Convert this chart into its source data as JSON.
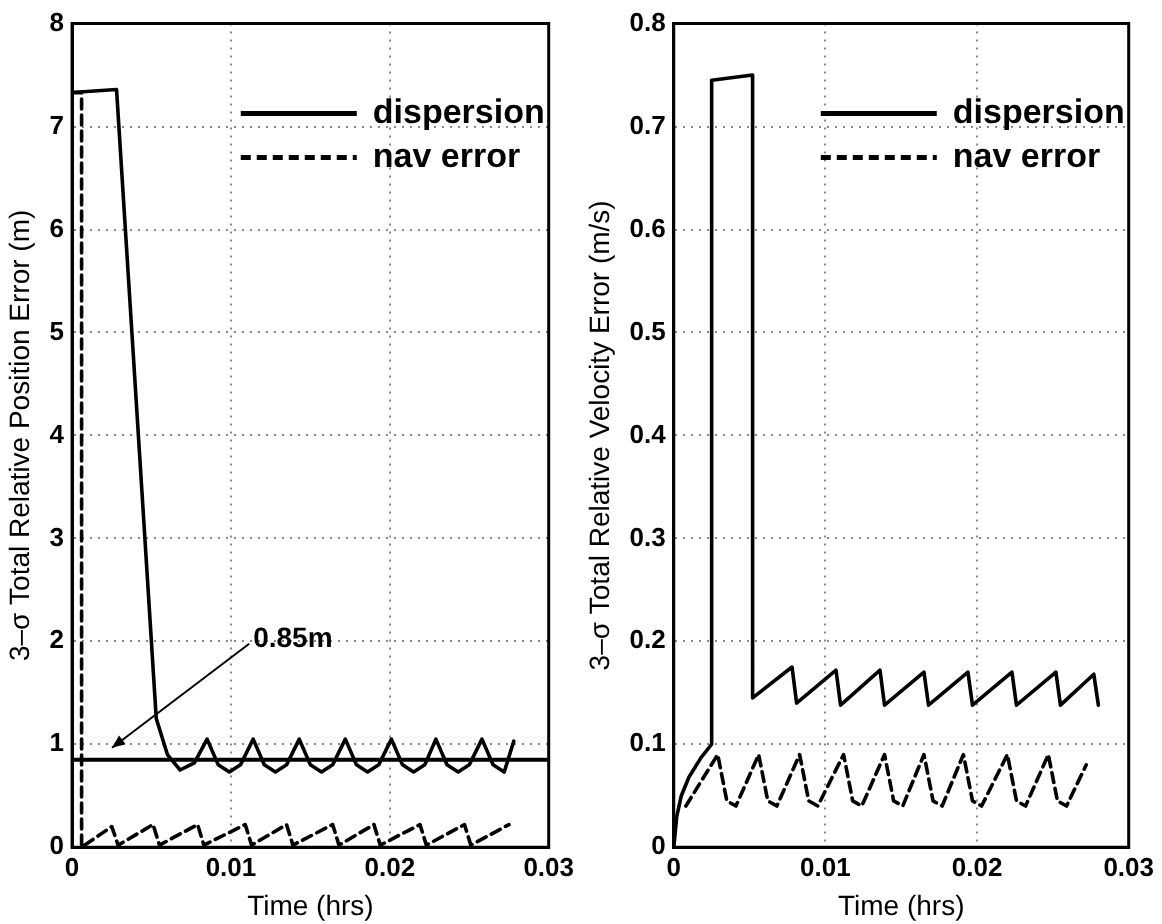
{
  "chart_data": [
    {
      "type": "line",
      "xlabel": "Time (hrs)",
      "ylabel": "3–σ Total Relative Position Error (m)",
      "xlim": [
        0,
        0.03
      ],
      "ylim": [
        0,
        8
      ],
      "xticks": [
        0,
        0.01,
        0.02,
        0.03
      ],
      "yticks": [
        0,
        1,
        2,
        3,
        4,
        5,
        6,
        7,
        8
      ],
      "grid": true,
      "legend": "top right",
      "marker": "none",
      "ref_lines": [
        {
          "axis": "y",
          "value": 0.85,
          "label": "0.85m",
          "color": "#000000"
        }
      ],
      "series": [
        {
          "name": "dispersion",
          "color": "#000000",
          "line_style": "solid",
          "x": [
            0,
            0.0028,
            0.0053,
            0.006,
            0.0068,
            0.0077,
            0.0085,
            0.0092,
            0.0099,
            0.0106,
            0.0114,
            0.0121,
            0.0128,
            0.0135,
            0.0143,
            0.015,
            0.0157,
            0.0164,
            0.0172,
            0.0179,
            0.0186,
            0.0193,
            0.0201,
            0.0208,
            0.0215,
            0.0222,
            0.0229,
            0.0236,
            0.0243,
            0.025,
            0.0258,
            0.0265,
            0.0272,
            0.0278
          ],
          "values": [
            7.33,
            7.36,
            1.25,
            0.9,
            0.75,
            0.82,
            1.05,
            0.8,
            0.73,
            0.8,
            1.05,
            0.8,
            0.73,
            0.8,
            1.05,
            0.8,
            0.73,
            0.8,
            1.05,
            0.8,
            0.73,
            0.8,
            1.05,
            0.8,
            0.73,
            0.8,
            1.05,
            0.8,
            0.73,
            0.8,
            1.05,
            0.8,
            0.73,
            1.03
          ]
        },
        {
          "name": "nav error",
          "color": "#000000",
          "line_style": "dashed",
          "x": [
            0,
            0.0006,
            0.0006,
            0.0025,
            0.0029,
            0.0051,
            0.0055,
            0.0079,
            0.0083,
            0.0109,
            0.0113,
            0.0135,
            0.0139,
            0.0164,
            0.0168,
            0.019,
            0.0194,
            0.0219,
            0.0223,
            0.0247,
            0.0251,
            0.0275
          ],
          "values": [
            7.33,
            7.33,
            0,
            0.2,
            0.02,
            0.22,
            0.02,
            0.22,
            0.02,
            0.22,
            0.02,
            0.22,
            0.02,
            0.22,
            0.02,
            0.22,
            0.02,
            0.22,
            0.02,
            0.22,
            0.02,
            0.22
          ]
        }
      ]
    },
    {
      "type": "line",
      "xlabel": "Time (hrs)",
      "ylabel": "3–σ Total Relative Velocity Error (m/s)",
      "xlim": [
        0,
        0.03
      ],
      "ylim": [
        0,
        0.8
      ],
      "xticks": [
        0,
        0.01,
        0.02,
        0.03
      ],
      "yticks": [
        0,
        0.1,
        0.2,
        0.3,
        0.4,
        0.5,
        0.6,
        0.7,
        0.8
      ],
      "grid": true,
      "legend": "top right",
      "marker": "none",
      "series": [
        {
          "name": "dispersion",
          "color": "#000000",
          "line_style": "solid",
          "x": [
            0,
            0.0002,
            0.0005,
            0.001,
            0.0018,
            0.0025,
            0.0025,
            0.0052,
            0.0052,
            0.0078,
            0.0081,
            0.0107,
            0.011,
            0.0136,
            0.0139,
            0.0165,
            0.0168,
            0.0194,
            0.0197,
            0.0223,
            0.0226,
            0.0252,
            0.0255,
            0.0277,
            0.028
          ],
          "values": [
            0,
            0.03,
            0.05,
            0.068,
            0.087,
            0.1,
            0.745,
            0.75,
            0.145,
            0.175,
            0.14,
            0.172,
            0.138,
            0.172,
            0.138,
            0.17,
            0.138,
            0.17,
            0.138,
            0.17,
            0.138,
            0.17,
            0.138,
            0.168,
            0.138
          ]
        },
        {
          "name": "nav error",
          "color": "#000000",
          "line_style": "dashed",
          "x": [
            0.0008,
            0.0029,
            0.0035,
            0.0041,
            0.0056,
            0.0062,
            0.0068,
            0.0083,
            0.0089,
            0.0095,
            0.0112,
            0.0118,
            0.0124,
            0.0139,
            0.0145,
            0.0151,
            0.0165,
            0.0171,
            0.0177,
            0.0191,
            0.0197,
            0.0203,
            0.022,
            0.0226,
            0.0232,
            0.0247,
            0.0253,
            0.0259,
            0.0272
          ],
          "values": [
            0.04,
            0.09,
            0.045,
            0.04,
            0.09,
            0.045,
            0.04,
            0.09,
            0.045,
            0.04,
            0.09,
            0.045,
            0.04,
            0.09,
            0.045,
            0.04,
            0.09,
            0.045,
            0.04,
            0.09,
            0.045,
            0.04,
            0.09,
            0.045,
            0.04,
            0.09,
            0.045,
            0.04,
            0.08
          ]
        }
      ]
    }
  ]
}
